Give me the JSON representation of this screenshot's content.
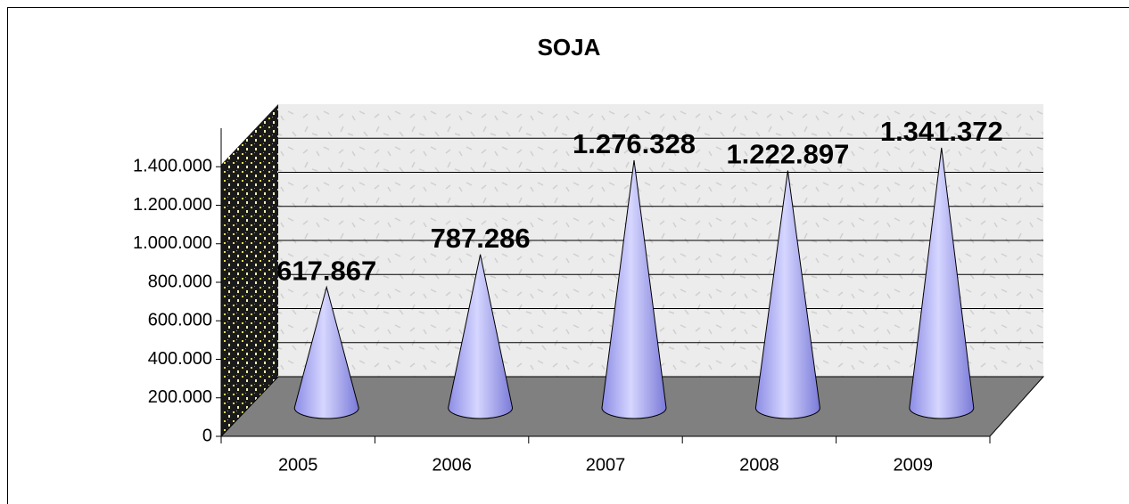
{
  "chart_data": {
    "type": "cone",
    "title": "SOJA",
    "categories": [
      "2005",
      "2006",
      "2007",
      "2008",
      "2009"
    ],
    "values": [
      617867,
      787286,
      1276328,
      1222897,
      1341372
    ],
    "value_labels": [
      "617.867",
      "787.286",
      "1.276.328",
      "1.222.897",
      "1.341.372"
    ],
    "color": "#9999ee",
    "ylim": [
      0,
      1600000
    ],
    "yticks": [
      0,
      {
        "value": 200000,
        "label": "200.000"
      },
      {
        "value": 400000,
        "label": "400.000"
      },
      {
        "value": 600000,
        "label": "600.000"
      },
      {
        "value": 800000,
        "label": "800.000"
      },
      {
        "value": 1000000,
        "label": "1.000.000"
      },
      {
        "value": 1200000,
        "label": "1.200.000"
      },
      {
        "value": 1400000,
        "label": "1.400.000"
      }
    ],
    "grid": true
  }
}
